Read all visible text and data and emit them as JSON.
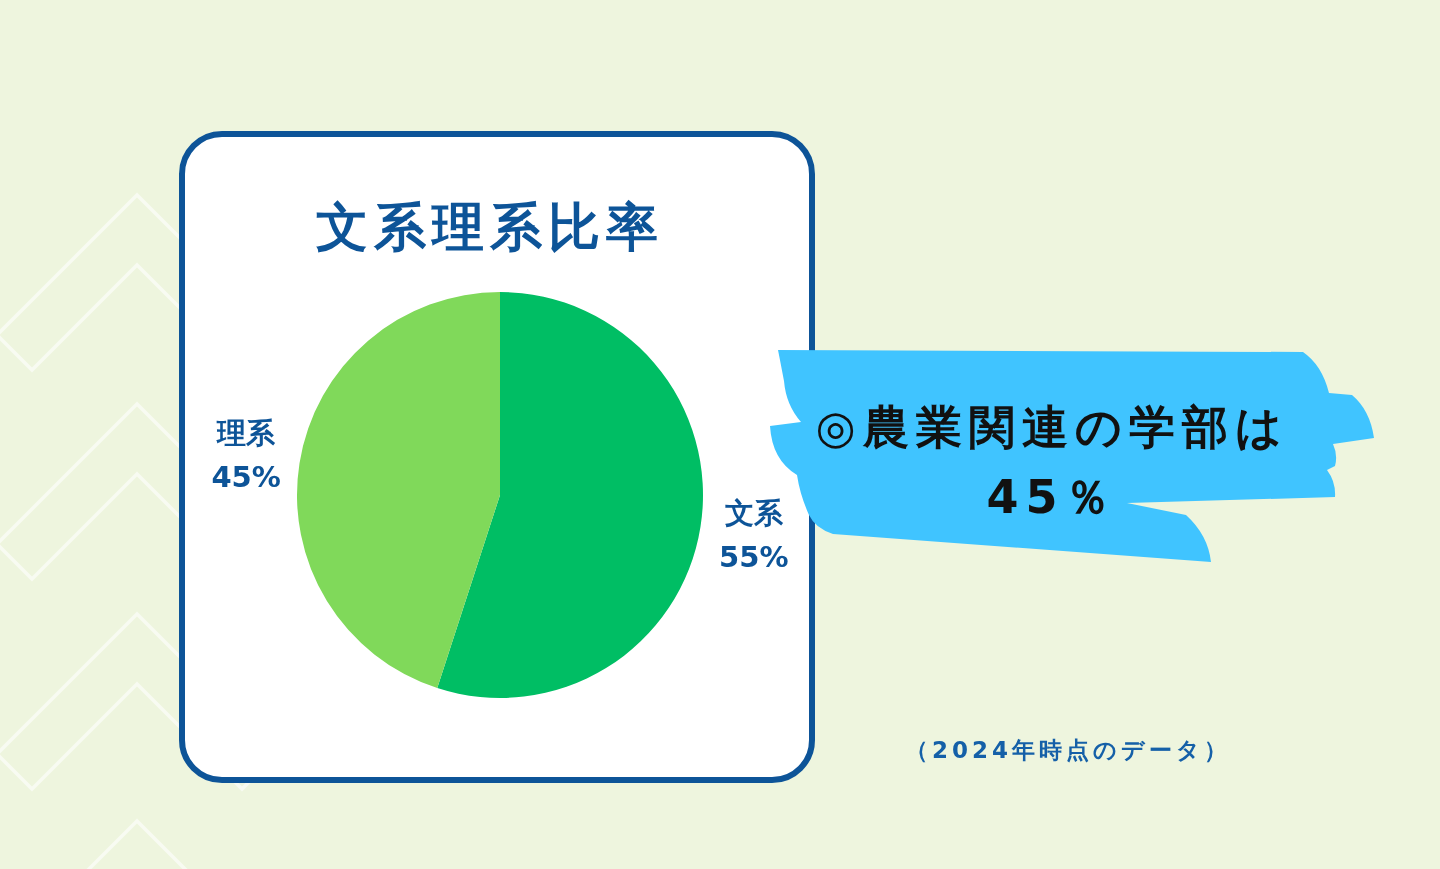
{
  "chart_data": {
    "type": "pie",
    "title": "文系理系比率",
    "categories": [
      "文系",
      "理系"
    ],
    "values": [
      55,
      45
    ],
    "colors": [
      "#00be64",
      "#80d95a"
    ],
    "value_labels": [
      "55%",
      "45%"
    ],
    "annotations": [
      "◎農業関連の学部は45％",
      "（2024年時点のデータ）"
    ]
  }
}
